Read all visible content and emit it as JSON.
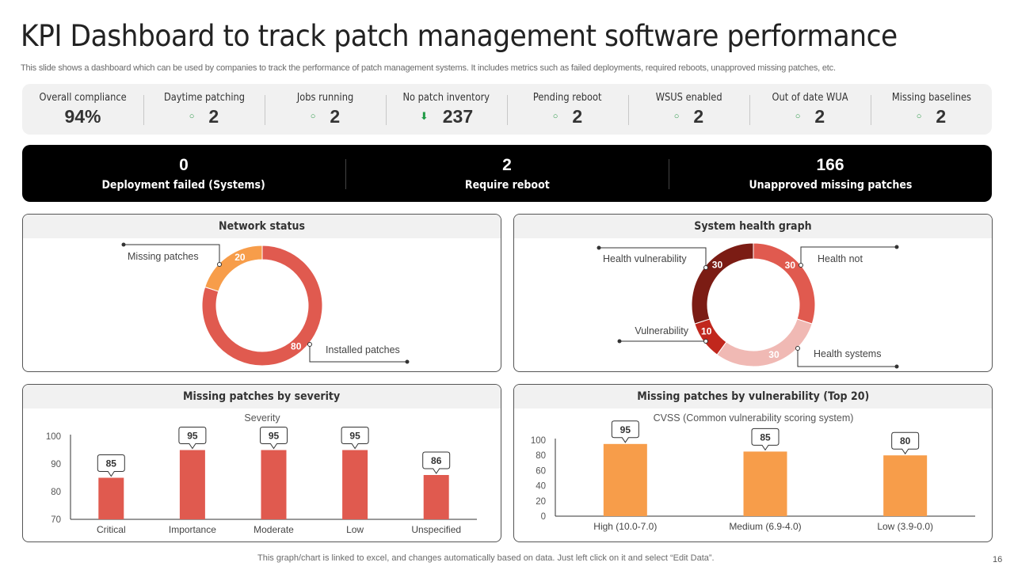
{
  "header": {
    "title": "KPI Dashboard to track patch management software performance",
    "subtitle": "This slide shows a dashboard which can be used by companies to track the performance of patch management systems. It includes metrics such as failed deployments, required reboots, unapproved missing patches, etc."
  },
  "kpis": [
    {
      "label": "Overall compliance",
      "value": "94%",
      "icon": ""
    },
    {
      "label": "Daytime patching",
      "value": "2",
      "icon": "circle-outline-icon"
    },
    {
      "label": "Jobs running",
      "value": "2",
      "icon": "circle-outline-icon"
    },
    {
      "label": "No patch inventory",
      "value": "237",
      "icon": "arrow-down-icon"
    },
    {
      "label": "Pending reboot",
      "value": "2",
      "icon": "circle-outline-icon"
    },
    {
      "label": "WSUS enabled",
      "value": "2",
      "icon": "circle-outline-icon"
    },
    {
      "label": "Out of date WUA",
      "value": "2",
      "icon": "circle-outline-icon"
    },
    {
      "label": "Missing baselines",
      "value": "2",
      "icon": "circle-outline-icon"
    }
  ],
  "icons": {
    "circle": "○",
    "arrow_down": "⬇"
  },
  "summary": [
    {
      "value": "0",
      "label": "Deployment failed (Systems)"
    },
    {
      "value": "2",
      "label": "Require reboot"
    },
    {
      "value": "166",
      "label": "Unapproved missing patches"
    }
  ],
  "colors": {
    "red": "#e05a4f",
    "orange": "#f79d4a",
    "dark_red": "#7b1c14",
    "mid_red": "#c1271d",
    "pink": "#f0b9b4"
  },
  "chart_data": [
    {
      "type": "pie",
      "title": "Network status",
      "donut": true,
      "slices": [
        {
          "label": "Installed patches",
          "value": 80,
          "color": "#e05a4f"
        },
        {
          "label": "Missing patches",
          "value": 20,
          "color": "#f79d4a"
        }
      ]
    },
    {
      "type": "pie",
      "title": "System health graph",
      "donut": true,
      "slices": [
        {
          "label": "Health not",
          "value": 30,
          "color": "#e05a4f"
        },
        {
          "label": "Health systems",
          "value": 30,
          "color": "#f0b9b4"
        },
        {
          "label": "Vulnerability",
          "value": 10,
          "color": "#c1271d"
        },
        {
          "label": "Health vulnerability",
          "value": 30,
          "color": "#7b1c14"
        }
      ]
    },
    {
      "type": "bar",
      "title": "Missing patches by severity",
      "subtitle": "Severity",
      "categories": [
        "Critical",
        "Importance",
        "Moderate",
        "Low",
        "Unspecified"
      ],
      "values": [
        85,
        95,
        95,
        95,
        86
      ],
      "ylim": [
        70,
        100
      ],
      "yticks": [
        70,
        80,
        90,
        100
      ],
      "color": "#e05a4f",
      "xlabel": "",
      "ylabel": ""
    },
    {
      "type": "bar",
      "title": "Missing patches by vulnerability (Top 20)",
      "subtitle": "CVSS (Common vulnerability  scoring system)",
      "categories": [
        "High (10.0-7.0)",
        "Medium (6.9-4.0)",
        "Low (3.9-0.0)"
      ],
      "values": [
        95,
        85,
        80
      ],
      "ylim": [
        0,
        100
      ],
      "yticks": [
        0,
        20,
        40,
        60,
        80,
        100
      ],
      "color": "#f79d4a",
      "xlabel": "",
      "ylabel": ""
    }
  ],
  "footer": {
    "note": "This graph/chart is linked to excel,  and changes automatically based on data. Just left click on it and select “Edit Data”.",
    "page": "16"
  }
}
